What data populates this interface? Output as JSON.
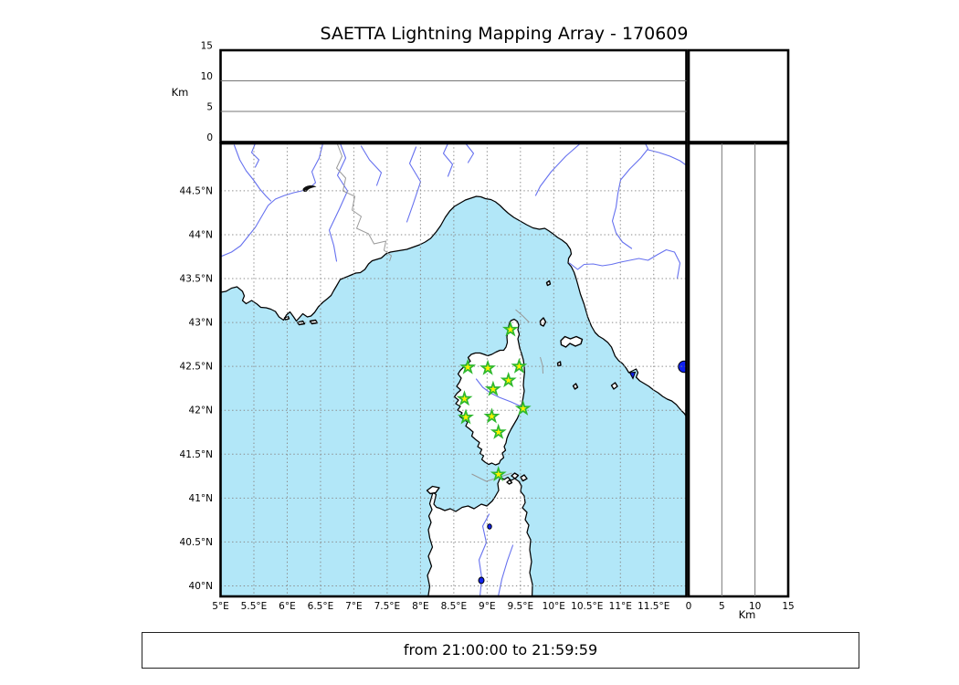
{
  "title": "SAETTA Lightning Mapping Array - 170609",
  "footer": {
    "text": "from 21:00:00 to 21:59:59"
  },
  "altitude_axis": {
    "label": "Km",
    "tick_labels": [
      "0",
      "5",
      "10",
      "15"
    ],
    "tick_values": [
      0,
      5,
      10,
      15
    ],
    "range": [
      0,
      15
    ],
    "gridlines_km": [
      5,
      10
    ]
  },
  "map_axes": {
    "lon_range": [
      5.0,
      11.99
    ],
    "lat_range": [
      39.88,
      45.04
    ],
    "lon_tick_values": [
      5,
      5.5,
      6,
      6.5,
      7,
      7.5,
      8,
      8.5,
      9,
      9.5,
      10,
      10.5,
      11,
      11.5
    ],
    "lon_tick_labels": [
      "5°E",
      "5.5°E",
      "6°E",
      "6.5°E",
      "7°E",
      "7.5°E",
      "8°E",
      "8.5°E",
      "9°E",
      "9.5°E",
      "10°E",
      "10.5°E",
      "11°E",
      "11.5°E"
    ],
    "lat_tick_values": [
      44.5,
      44,
      43.5,
      43,
      42.5,
      42,
      41.5,
      41,
      40.5,
      40
    ],
    "lat_tick_labels": [
      "44.5°N",
      "44°N",
      "43.5°N",
      "43°N",
      "42.5°N",
      "42°N",
      "41.5°N",
      "41°N",
      "40.5°N",
      "40°N"
    ],
    "grid_step_deg": 0.5
  },
  "chart_data": {
    "type": "scatter",
    "title": "SAETTA Lightning Mapping Array - 170609",
    "map_extent": {
      "lon": [
        5.0,
        11.99
      ],
      "lat": [
        39.88,
        45.04
      ]
    },
    "stations_lon_lat": [
      [
        9.35,
        42.92
      ],
      [
        8.71,
        42.49
      ],
      [
        9.01,
        42.48
      ],
      [
        9.48,
        42.5
      ],
      [
        9.32,
        42.34
      ],
      [
        9.09,
        42.24
      ],
      [
        8.66,
        42.13
      ],
      [
        9.54,
        42.02
      ],
      [
        8.68,
        41.92
      ],
      [
        9.07,
        41.93
      ],
      [
        9.17,
        41.75
      ],
      [
        9.17,
        41.27
      ]
    ],
    "station_marker": "star",
    "event_points": [],
    "altitude_axis_km": [
      0,
      15
    ],
    "time_window": "from 21:00:00 to 21:59:59"
  },
  "colors": {
    "sea": "#b2e7f8",
    "land": "#ffffff",
    "coastline": "#000000",
    "river": "#6671ef",
    "country_border": "#999999",
    "grid": "#8a8a8a",
    "panel_grid": "#777777",
    "star_fill": "#fbf300",
    "star_edge": "#2eb82e",
    "lake": "#1122ee",
    "frame": "#000000"
  }
}
